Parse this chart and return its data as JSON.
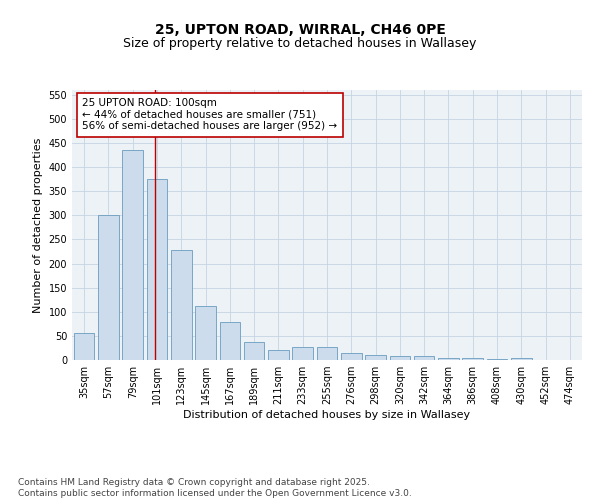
{
  "title": "25, UPTON ROAD, WIRRAL, CH46 0PE",
  "subtitle": "Size of property relative to detached houses in Wallasey",
  "xlabel": "Distribution of detached houses by size in Wallasey",
  "ylabel": "Number of detached properties",
  "categories": [
    "35sqm",
    "57sqm",
    "79sqm",
    "101sqm",
    "123sqm",
    "145sqm",
    "167sqm",
    "189sqm",
    "211sqm",
    "233sqm",
    "255sqm",
    "276sqm",
    "298sqm",
    "320sqm",
    "342sqm",
    "364sqm",
    "386sqm",
    "408sqm",
    "430sqm",
    "452sqm",
    "474sqm"
  ],
  "values": [
    57,
    300,
    435,
    375,
    228,
    113,
    78,
    38,
    20,
    27,
    27,
    15,
    10,
    8,
    8,
    5,
    4,
    2,
    4,
    1,
    1
  ],
  "bar_color": "#ccdcec",
  "bar_edge_color": "#6a9cbf",
  "grid_color": "#c5d5e5",
  "background_color": "#edf2f7",
  "vline_x_index": 3,
  "vline_color": "#bb0000",
  "annotation_text": "25 UPTON ROAD: 100sqm\n← 44% of detached houses are smaller (751)\n56% of semi-detached houses are larger (952) →",
  "annotation_box_facecolor": "#ffffff",
  "annotation_box_edgecolor": "#bb0000",
  "ylim": [
    0,
    560
  ],
  "yticks": [
    0,
    50,
    100,
    150,
    200,
    250,
    300,
    350,
    400,
    450,
    500,
    550
  ],
  "footer": "Contains HM Land Registry data © Crown copyright and database right 2025.\nContains public sector information licensed under the Open Government Licence v3.0.",
  "title_fontsize": 10,
  "subtitle_fontsize": 9,
  "xlabel_fontsize": 8,
  "ylabel_fontsize": 8,
  "tick_fontsize": 7,
  "annotation_fontsize": 7.5,
  "footer_fontsize": 6.5
}
